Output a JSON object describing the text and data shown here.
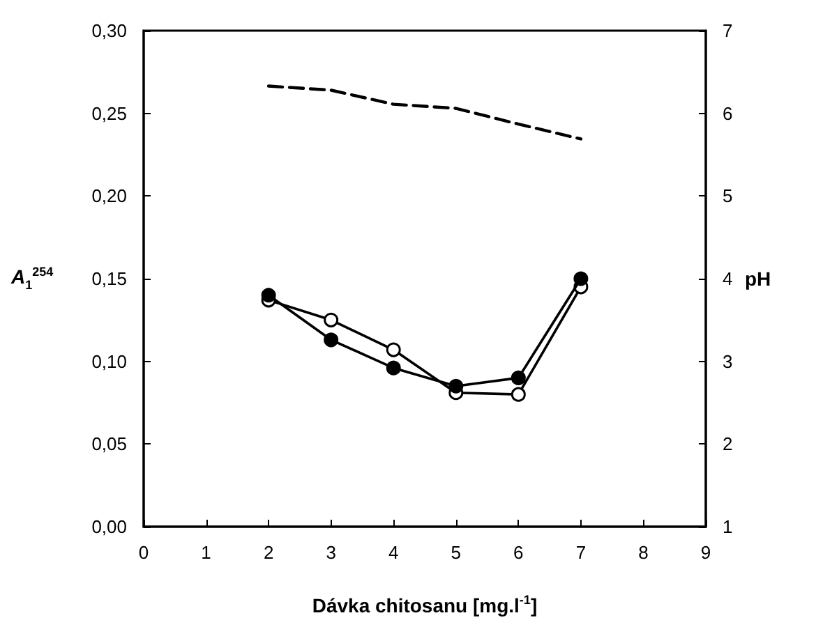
{
  "chart_data": {
    "type": "line",
    "xlabel": "Dávka chitosanu [mg.l$^{-1}$]",
    "ylabel": "A$_{1}$$^{254}$",
    "y2label": "pH",
    "x": [
      2,
      3,
      4,
      5,
      6,
      7
    ],
    "series": [
      {
        "color": "#000000",
        "marker": "circle",
        "values": [
          0.14,
          0.113,
          0.096,
          0.085,
          0.09,
          0.15
        ]
      },
      {
        "color": "#000000",
        "marker": "circle",
        "values": [
          0.137,
          0.125,
          0.107,
          0.081,
          0.08,
          0.145
        ]
      },
      {
        "color": "#000000",
        "marker": "none",
        "line_style": "dashed",
        "axis": "y2",
        "values": [
          6.33,
          6.28,
          6.11,
          6.06,
          5.87,
          5.69
        ]
      }
    ],
    "xlim": [
      0,
      9
    ],
    "xticks": [
      0,
      1,
      2,
      3,
      4,
      5,
      6,
      7,
      8,
      9
    ],
    "ylim": [
      0,
      0.3
    ],
    "yticks": [
      {
        "value": 0,
        "label": "0,00"
      },
      {
        "value": 0.05,
        "label": "0,05"
      },
      {
        "value": 0.1,
        "label": "0,10"
      },
      {
        "value": 0.15,
        "label": "0,15"
      },
      {
        "value": 0.2,
        "label": "0,20"
      },
      {
        "value": 0.25,
        "label": "0,25"
      },
      {
        "value": 0.3,
        "label": "0,30"
      }
    ],
    "y2lim": [
      1,
      7
    ],
    "y2ticks": [
      1,
      2,
      3,
      4,
      5,
      6,
      7
    ],
    "grid": false
  }
}
